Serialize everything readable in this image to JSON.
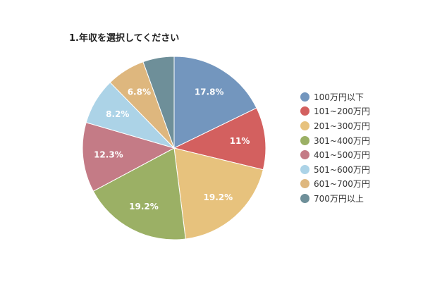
{
  "chart_data": {
    "type": "pie",
    "title": "1.年収を選択してください",
    "categories": [
      "100万円以下",
      "101~200万円",
      "201~300万円",
      "301~400万円",
      "401~500万円",
      "501~600万円",
      "601~700万円",
      "700万円以上"
    ],
    "values": [
      17.8,
      11,
      19.2,
      19.2,
      12.3,
      8.2,
      6.8,
      5.5
    ],
    "data_labels": [
      "17.8%",
      "11%",
      "19.2%",
      "19.2%",
      "12.3%",
      "8.2%",
      "6.8%",
      ""
    ],
    "colors": [
      "#7396be",
      "#d3605f",
      "#e7c27d",
      "#9bb065",
      "#c47b86",
      "#acd3e7",
      "#deb77e",
      "#6e8f99"
    ],
    "legend_position": "right"
  }
}
